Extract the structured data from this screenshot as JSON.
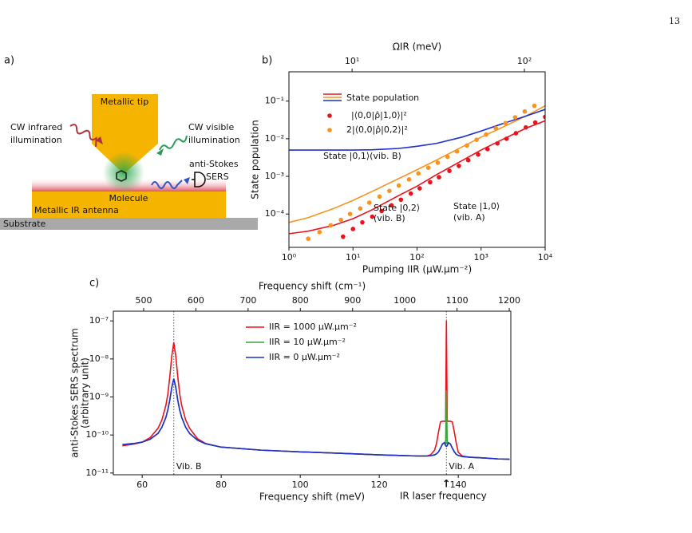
{
  "page_number": "13",
  "panel_labels": [
    "a)",
    "b)",
    "c)"
  ],
  "diagram": {
    "tip": "Metallic tip",
    "ir_light": [
      "CW infrared",
      "illumination"
    ],
    "vis_light": [
      "CW visible",
      "illumination"
    ],
    "sers": [
      "anti-Stokes",
      "SERS"
    ],
    "molecule": "Molecule",
    "antenna": "Metallic IR antenna",
    "substrate": "Substrate"
  },
  "chart_data": [
    {
      "type": "line",
      "xlog": true,
      "ylog": true,
      "xlabel": "Pumping IIR (μW.μm⁻²)",
      "ylabel": "State population",
      "x2label": "ΩIR (meV)",
      "xlim": [
        1,
        10000
      ],
      "ylim": [
        1.3e-05,
        0.6
      ],
      "x2lim": [
        4.3,
        132
      ],
      "x2log": true,
      "xticks": [
        {
          "value": 1,
          "label": "10⁰"
        },
        {
          "value": 10,
          "label": "10¹"
        },
        {
          "value": 100,
          "label": "10²"
        },
        {
          "value": 1000,
          "label": "10³"
        },
        {
          "value": 10000,
          "label": "10⁴"
        }
      ],
      "yticks": [
        {
          "value": 0.0001,
          "label": "10⁻⁴"
        },
        {
          "value": 0.001,
          "label": "10⁻³"
        },
        {
          "value": 0.01,
          "label": "10⁻²"
        },
        {
          "value": 0.1,
          "label": "10⁻¹"
        }
      ],
      "x2ticks": [
        {
          "value": 10,
          "label": "10¹"
        },
        {
          "value": 100,
          "label": "10²"
        }
      ],
      "legend": {
        "position": "upper left",
        "labels": [
          "State population",
          "|⟨0,0|ρ̂|1,0⟩|²",
          "2|⟨0,0|ρ̂|0,2⟩|²"
        ]
      },
      "series": [
        {
          "style": "line",
          "color": "#e8141c",
          "x": [
            1,
            2,
            5,
            10,
            20,
            50,
            100,
            200,
            500,
            1000,
            2000,
            5000,
            10000
          ],
          "values": [
            3e-05,
            3.5e-05,
            5e-05,
            7.5e-05,
            0.00013,
            0.0003,
            0.00055,
            0.0011,
            0.0026,
            0.005,
            0.009,
            0.019,
            0.03
          ]
        },
        {
          "style": "line",
          "color": "#f7931e",
          "x": [
            1,
            2,
            5,
            10,
            20,
            50,
            100,
            200,
            500,
            1000,
            2000,
            5000,
            10000
          ],
          "values": [
            6e-05,
            8e-05,
            0.00014,
            0.00023,
            0.0004,
            0.00085,
            0.0015,
            0.0027,
            0.006,
            0.011,
            0.019,
            0.04,
            0.075
          ]
        },
        {
          "style": "line",
          "color": "#1f2ecc",
          "x": [
            1,
            2,
            5,
            10,
            20,
            50,
            100,
            200,
            500,
            1000,
            2000,
            5000,
            10000
          ],
          "values": [
            0.005,
            0.005,
            0.005,
            0.005,
            0.0051,
            0.0055,
            0.0063,
            0.0075,
            0.011,
            0.016,
            0.024,
            0.04,
            0.06
          ]
        },
        {
          "style": "points",
          "color": "#e8141c",
          "x": [
            7,
            10,
            14,
            20,
            28,
            40,
            56,
            80,
            110,
            160,
            220,
            320,
            450,
            630,
            900,
            1260,
            1800,
            2500,
            3500,
            5000,
            7000,
            10000
          ],
          "values": [
            2.5e-05,
            4e-05,
            6e-05,
            8.5e-05,
            0.00012,
            0.00017,
            0.00024,
            0.00035,
            0.00048,
            0.0007,
            0.00095,
            0.0014,
            0.0019,
            0.0027,
            0.0038,
            0.0053,
            0.0075,
            0.01,
            0.014,
            0.02,
            0.027,
            0.038
          ]
        },
        {
          "style": "points",
          "color": "#f7931e",
          "x": [
            2,
            3,
            4.5,
            6.5,
            9,
            13,
            18,
            26,
            37,
            52,
            75,
            105,
            150,
            210,
            300,
            420,
            600,
            850,
            1200,
            1700,
            2400,
            3400,
            4800,
            6800
          ],
          "values": [
            2.2e-05,
            3.3e-05,
            5e-05,
            7e-05,
            0.0001,
            0.00014,
            0.0002,
            0.00029,
            0.00041,
            0.00057,
            0.00083,
            0.0012,
            0.0017,
            0.0023,
            0.0033,
            0.0046,
            0.0066,
            0.0094,
            0.013,
            0.019,
            0.026,
            0.037,
            0.053,
            0.075
          ]
        }
      ],
      "annotations": [
        {
          "text": "State |0,1⟩(vib. B)",
          "color": "#1f2ecc"
        },
        {
          "text": "State |0,2⟩",
          "color": "#f7931e"
        },
        {
          "text": "(vib. B)",
          "color": "#f7931e"
        },
        {
          "text": "State |1,0⟩",
          "color": "#e8141c"
        },
        {
          "text": "(vib. A)",
          "color": "#e8141c"
        }
      ]
    },
    {
      "type": "line",
      "xlog": false,
      "ylog": true,
      "xlabel": "Frequency shift (meV)",
      "ylabel": [
        "anti-Stokes SERS spectrum",
        "(arbitrary unit)"
      ],
      "x2label": "Frequency shift (cm⁻¹)",
      "xlim": [
        52.7,
        153.3
      ],
      "ylim": [
        9e-12,
        1.8e-07
      ],
      "x2lim": [
        442,
        1203
      ],
      "x2log": false,
      "xticks": [
        60,
        80,
        100,
        120,
        140
      ],
      "yticks": [
        {
          "value": 1e-11,
          "label": "10⁻¹¹"
        },
        {
          "value": 1e-10,
          "label": "10⁻¹⁰"
        },
        {
          "value": 1e-09,
          "label": "10⁻⁹"
        },
        {
          "value": 1e-08,
          "label": "10⁻⁸"
        },
        {
          "value": 1e-07,
          "label": "10⁻⁷"
        }
      ],
      "x2ticks": [
        500,
        600,
        700,
        800,
        900,
        1000,
        1100,
        1200
      ],
      "legend": {
        "position": "upper center"
      },
      "x": [
        55,
        58,
        60,
        62,
        64,
        65,
        66,
        66.5,
        67,
        67.5,
        68,
        68.5,
        69,
        69.5,
        70,
        71,
        72,
        74,
        76,
        80,
        90,
        100,
        110,
        120,
        125,
        130,
        132,
        133,
        134,
        134.5,
        135,
        135.5,
        136,
        136.5,
        136.8,
        137,
        137.2,
        137.5,
        138,
        138.5,
        139,
        139.5,
        140,
        141,
        143,
        146,
        150,
        153
      ],
      "series": [
        {
          "name": "IIR = 1000 μW.μm⁻²",
          "color": "#e8141c",
          "values": [
            5.2e-11,
            5.8e-11,
            6.5e-11,
            8.5e-11,
            1.5e-10,
            2.5e-10,
            6e-10,
            1.2e-09,
            3.5e-09,
            1.2e-08,
            2.7e-08,
            1.2e-08,
            3.5e-09,
            1.2e-09,
            6e-10,
            2.5e-10,
            1.5e-10,
            8e-11,
            6e-11,
            4.8e-11,
            4e-11,
            3.6e-11,
            3.3e-11,
            3e-11,
            2.9e-11,
            2.8e-11,
            2.8e-11,
            3e-11,
            4e-11,
            6e-11,
            1.2e-10,
            2.2e-10,
            2.3e-10,
            2.3e-10,
            2.3e-10,
            1e-07,
            2.3e-10,
            2.3e-10,
            2.3e-10,
            2.2e-10,
            1.2e-10,
            6e-11,
            3.5e-11,
            2.8e-11,
            2.6e-11,
            2.5e-11,
            2.35e-11,
            2.3e-11
          ]
        },
        {
          "name": "IIR = 10 μW.μm⁻²",
          "color": "#3aa33a",
          "values": [
            5.6e-11,
            6e-11,
            6.5e-11,
            7.7e-11,
            1.1e-10,
            1.6e-10,
            2.9e-10,
            4.6e-10,
            8.4e-10,
            1.8e-09,
            3e-09,
            1.8e-09,
            8.3e-10,
            4.5e-10,
            2.9e-10,
            1.6e-10,
            1.1e-10,
            7.3e-11,
            5.9e-11,
            4.8e-11,
            4e-11,
            3.6e-11,
            3.3e-11,
            3e-11,
            2.9e-11,
            2.8e-11,
            2.8e-11,
            2.85e-11,
            3e-11,
            3.2e-11,
            3.6e-11,
            4.5e-11,
            5.8e-11,
            6.4e-11,
            6e-11,
            1.5e-09,
            6e-11,
            6.4e-11,
            5.8e-11,
            4.5e-11,
            3.6e-11,
            3.1e-11,
            2.9e-11,
            2.7e-11,
            2.6e-11,
            2.5e-11,
            2.35e-11,
            2.3e-11
          ]
        },
        {
          "name": "IIR = 0  μW.μm⁻²",
          "color": "#1f2ecc",
          "values": [
            5.6e-11,
            6e-11,
            6.5e-11,
            7.7e-11,
            1.1e-10,
            1.6e-10,
            2.9e-10,
            4.6e-10,
            8.4e-10,
            1.8e-09,
            3e-09,
            1.8e-09,
            8.3e-10,
            4.5e-10,
            2.9e-10,
            1.6e-10,
            1.1e-10,
            7.3e-11,
            5.9e-11,
            4.8e-11,
            4e-11,
            3.6e-11,
            3.3e-11,
            3e-11,
            2.9e-11,
            2.8e-11,
            2.8e-11,
            2.85e-11,
            3e-11,
            3.2e-11,
            3.6e-11,
            4.5e-11,
            5.8e-11,
            6.2e-11,
            5.2e-11,
            5e-11,
            5.2e-11,
            6.2e-11,
            5.8e-11,
            4.5e-11,
            3.6e-11,
            3.1e-11,
            2.9e-11,
            2.7e-11,
            2.6e-11,
            2.5e-11,
            2.35e-11,
            2.3e-11
          ]
        }
      ],
      "annotations": [
        {
          "text": "Vib. B",
          "x": 68
        },
        {
          "text": "Vib. A",
          "x": 137
        },
        {
          "text": "↑",
          "x": 137
        },
        {
          "text": "IR laser frequency",
          "x": 137
        }
      ]
    }
  ]
}
